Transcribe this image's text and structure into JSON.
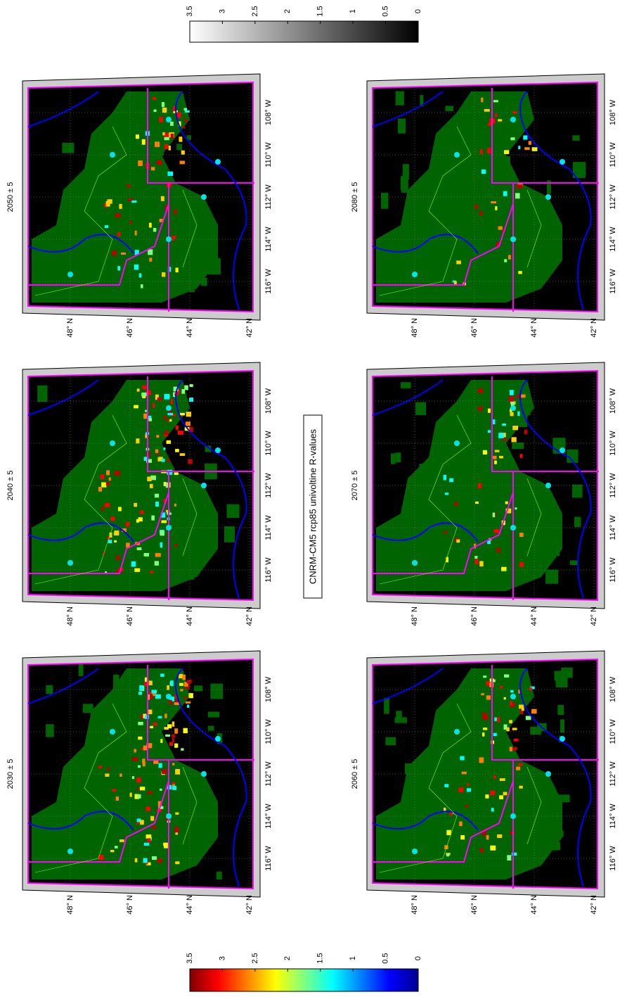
{
  "title": "CNRM-CM5 rcp85 univoltine R-values",
  "panels": [
    {
      "title": "2030 ± 5"
    },
    {
      "title": "2040 ± 5"
    },
    {
      "title": "2050 ± 5"
    },
    {
      "title": "2060 ± 5"
    },
    {
      "title": "2070 ± 5"
    },
    {
      "title": "2080 ± 5"
    }
  ],
  "lat_labels": [
    "48° N",
    "46° N",
    "44° N",
    "42° N"
  ],
  "lon_labels": [
    "116° W",
    "114° W",
    "112° W",
    "110° W",
    "108° W"
  ],
  "colorbars": [
    {
      "ticks": [
        "0",
        "0.5",
        "1",
        "1.5",
        "2",
        "2.5",
        "3",
        "3.5"
      ]
    },
    {
      "ticks": [
        "0",
        "0.5",
        "1",
        "1.5",
        "2",
        "2.5",
        "3",
        "3.5"
      ]
    }
  ]
}
